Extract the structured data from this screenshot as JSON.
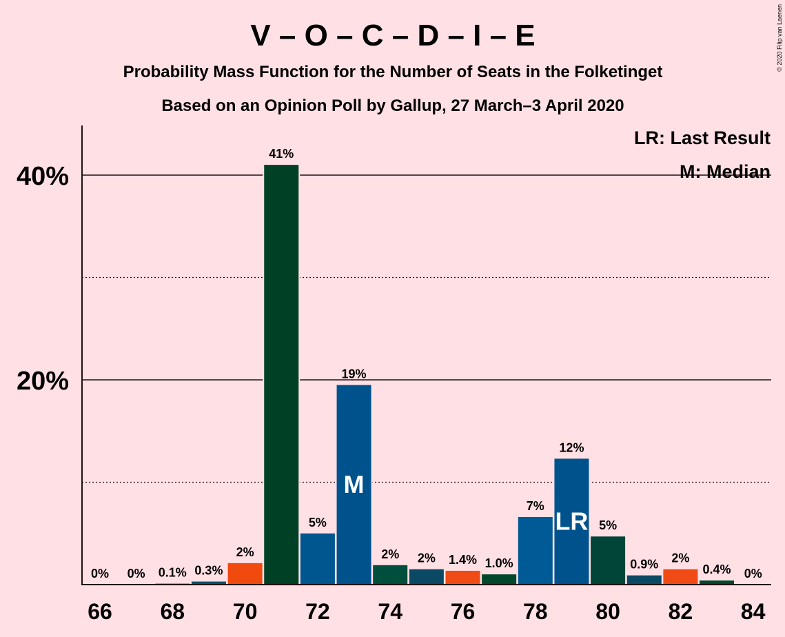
{
  "chart_data": {
    "type": "bar",
    "title": "V – O – C – D – I – E",
    "subtitle_1": "Probability Mass Function for the Number of Seats in the Folketinget",
    "subtitle_2": "Based on an Opinion Poll by Gallup, 27 March–3 April 2020",
    "copyright": "© 2020 Filip van Laenen",
    "legend": {
      "last_result": "LR: Last Result",
      "median": "M: Median",
      "placement": "top-right"
    },
    "ylim": [
      0,
      45
    ],
    "yticks": [
      {
        "value": 20,
        "label": "20%"
      },
      {
        "value": 40,
        "label": "40%"
      }
    ],
    "minor_gridlines": [
      10,
      30
    ],
    "xticks": [
      "66",
      "68",
      "70",
      "72",
      "74",
      "76",
      "78",
      "80",
      "82",
      "84"
    ],
    "categories": [
      66,
      67,
      68,
      69,
      70,
      71,
      72,
      73,
      74,
      75,
      76,
      77,
      78,
      79,
      80,
      81,
      82,
      83,
      84
    ],
    "values": [
      0,
      0,
      0.1,
      0.3,
      2.1,
      41,
      5,
      19.5,
      1.9,
      1.5,
      1.35,
      1.0,
      6.6,
      12.3,
      4.7,
      0.9,
      1.5,
      0.4,
      0
    ],
    "labels": [
      "0%",
      "0%",
      "0.1%",
      "0.3%",
      "2%",
      "41%",
      "5%",
      "19%",
      "2%",
      "2%",
      "1.4%",
      "1.0%",
      "7%",
      "12%",
      "5%",
      "0.9%",
      "2%",
      "0.4%",
      "0%"
    ],
    "colors": [
      "#00913c",
      "#00913c",
      "#00913c",
      "#0c4f6e",
      "#f04a0f",
      "#004024",
      "#00568f",
      "#00528c",
      "#004e3c",
      "#0b4863",
      "#f04b14",
      "#00472c",
      "#005a95",
      "#00528c",
      "#004538",
      "#0b4863",
      "#f04b14",
      "#00472c",
      "#00913c"
    ],
    "median_seat": 73,
    "median_marker": "M",
    "last_result_seat": 79,
    "last_result_marker": "LR"
  }
}
